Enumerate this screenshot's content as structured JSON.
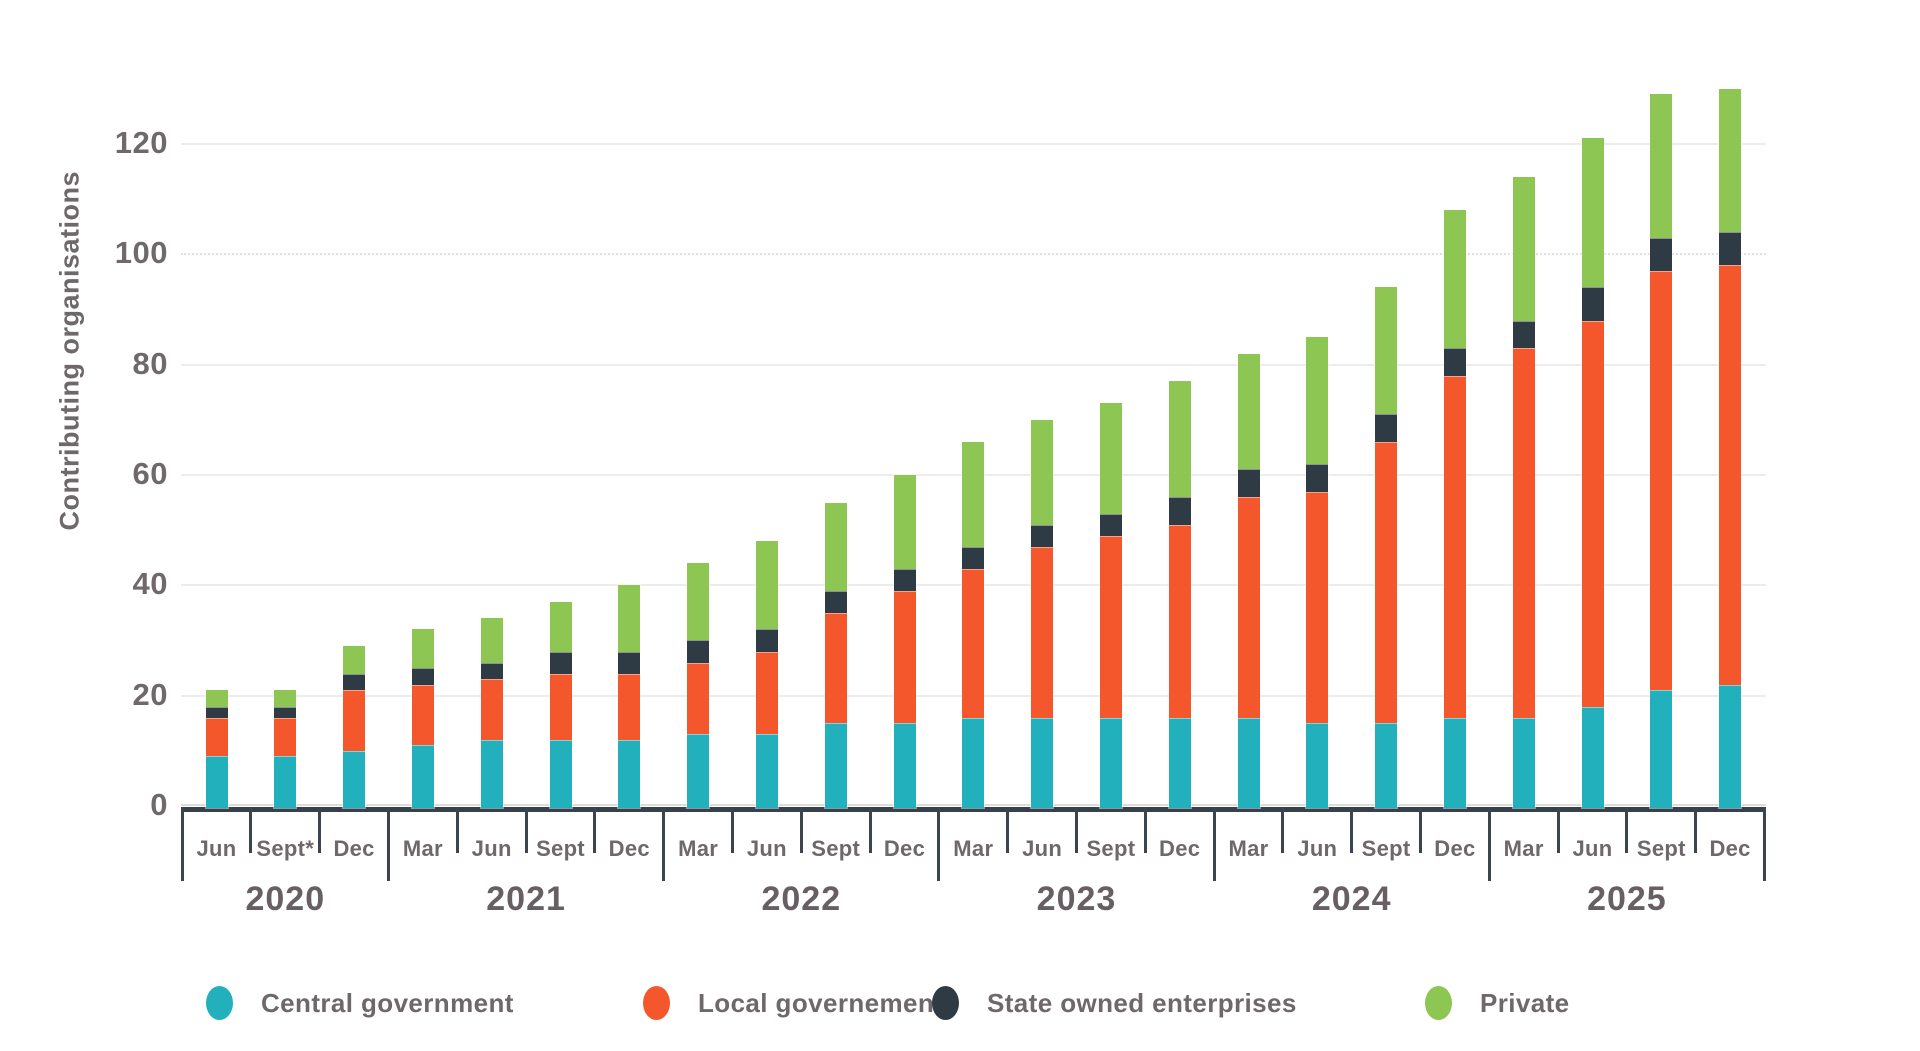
{
  "chart_data": {
    "type": "bar",
    "stacked": true,
    "title": "",
    "ylabel": "Contributing organisations",
    "xlabel": "",
    "y_ticks": [
      0,
      20,
      40,
      60,
      80,
      100,
      120
    ],
    "ylim": [
      0,
      139
    ],
    "dotted_gridline_at": 100,
    "grid": "horizontal",
    "legend_position": "bottom",
    "month_labels": [
      "Jun",
      "Sept*",
      "Dec",
      "Mar",
      "Jun",
      "Sept",
      "Dec",
      "Mar",
      "Jun",
      "Sept",
      "Dec",
      "Mar",
      "Jun",
      "Sept",
      "Dec",
      "Mar",
      "Jun",
      "Sept",
      "Dec",
      "Mar",
      "Jun",
      "Sept",
      "Dec"
    ],
    "year_groups": [
      {
        "label": "2020",
        "count": 3
      },
      {
        "label": "2021",
        "count": 4
      },
      {
        "label": "2022",
        "count": 4
      },
      {
        "label": "2023",
        "count": 4
      },
      {
        "label": "2024",
        "count": 4
      },
      {
        "label": "2025",
        "count": 4
      }
    ],
    "series": [
      {
        "name": "Central government",
        "color": "#22B0BC",
        "values": [
          9,
          9,
          10,
          11,
          12,
          12,
          12,
          13,
          13,
          15,
          15,
          16,
          16,
          16,
          16,
          16,
          15,
          15,
          16,
          16,
          18,
          21,
          22
        ]
      },
      {
        "name": "Local governement",
        "color": "#F4572B",
        "values": [
          7,
          7,
          11,
          11,
          11,
          12,
          12,
          13,
          15,
          20,
          24,
          27,
          31,
          33,
          35,
          40,
          42,
          51,
          62,
          67,
          70,
          76,
          76
        ]
      },
      {
        "name": "State owned enterprises",
        "color": "#2E3A44",
        "values": [
          2,
          2,
          3,
          3,
          3,
          4,
          4,
          4,
          4,
          4,
          4,
          4,
          4,
          4,
          5,
          5,
          5,
          5,
          5,
          5,
          6,
          6,
          6
        ]
      },
      {
        "name": "Private",
        "color": "#8DC652",
        "values": [
          3,
          3,
          5,
          7,
          8,
          9,
          12,
          14,
          16,
          16,
          17,
          19,
          19,
          20,
          21,
          21,
          23,
          23,
          25,
          26,
          27,
          26,
          26
        ]
      }
    ],
    "totals": [
      21,
      21,
      29,
      32,
      34,
      37,
      40,
      44,
      48,
      55,
      60,
      66,
      70,
      73,
      77,
      82,
      85,
      94,
      108,
      114,
      121,
      129,
      130
    ]
  },
  "colors": {
    "grid": "#ECECEC",
    "axis_band": "#36414B",
    "label_gray": "#6E686B"
  }
}
